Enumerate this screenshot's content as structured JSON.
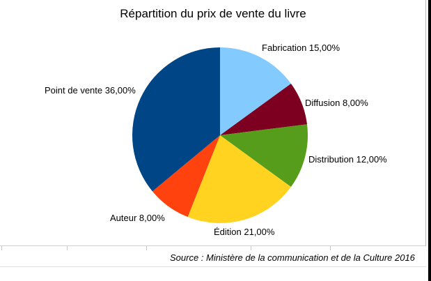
{
  "chart_data": {
    "type": "pie",
    "title": "Répartition du prix de vente du livre",
    "slices": [
      {
        "name": "Fabrication",
        "value": 15.0,
        "label": "Fabrication 15,00%",
        "color": "#83caff"
      },
      {
        "name": "Diffusion",
        "value": 8.0,
        "label": "Diffusion 8,00%",
        "color": "#7e0021"
      },
      {
        "name": "Distribution",
        "value": 12.0,
        "label": "Distribution 12,00%",
        "color": "#579d1c"
      },
      {
        "name": "Édition",
        "value": 21.0,
        "label": "Édition 21,00%",
        "color": "#ffd320"
      },
      {
        "name": "Auteur",
        "value": 8.0,
        "label": "Auteur 8,00%",
        "color": "#ff420e"
      },
      {
        "name": "Point de vente",
        "value": 36.0,
        "label": "Point de vente 36,00%",
        "color": "#004586"
      }
    ],
    "start_angle_deg": 0,
    "direction": "clockwise",
    "legend": "none"
  },
  "source": "Source : Ministère de la communication et de la Culture 2016"
}
